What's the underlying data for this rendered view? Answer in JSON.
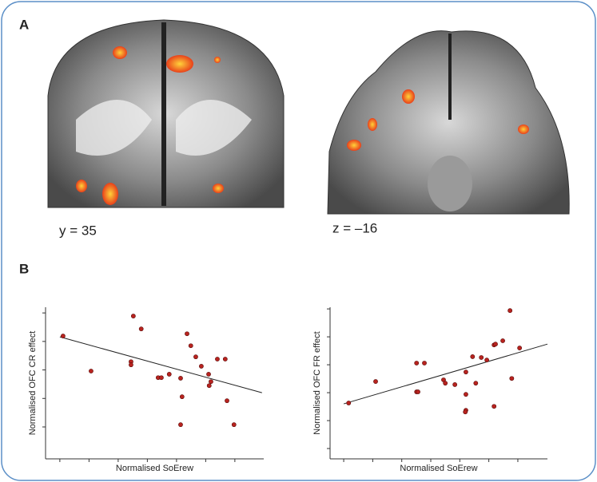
{
  "panel_labels": [
    "A",
    "B"
  ],
  "slice_labels": [
    "y = 35",
    "z = –16"
  ],
  "chart_data": [
    {
      "type": "scatter",
      "x_label": "Normalised SoErew",
      "y_label": "Normalised OFC CR effect",
      "color": "#b8231f",
      "x": [
        0.11,
        1.07,
        2.44,
        2.44,
        2.52,
        2.79,
        3.37,
        3.48,
        3.75,
        4.14,
        4.19,
        4.14,
        4.36,
        4.49,
        4.66,
        4.85,
        5.1,
        5.12,
        5.18,
        5.4,
        5.67,
        5.73,
        5.97
      ],
      "values": [
        3.19,
        1.96,
        2.29,
        2.18,
        3.89,
        3.44,
        1.73,
        1.73,
        1.85,
        1.71,
        1.06,
        0.08,
        3.27,
        2.85,
        2.46,
        2.13,
        1.85,
        1.45,
        1.59,
        2.38,
        2.38,
        0.92,
        0.08
      ],
      "trendline": {
        "x": [
          0,
          6.93
        ],
        "y": [
          3.16,
          1.2
        ]
      },
      "xlim": [
        -0.49,
        6.99
      ],
      "ylim": [
        -1.12,
        4.2
      ],
      "xticks": [
        0,
        1,
        2,
        3,
        4,
        5,
        6
      ],
      "yticks": [
        0,
        1,
        2,
        3,
        4
      ]
    },
    {
      "type": "scatter",
      "x_label": "Normalised SoErew",
      "y_label": "Normalised OFC FR effect",
      "color": "#b8231f",
      "x": [
        0.17,
        1.1,
        2.51,
        2.78,
        2.51,
        2.56,
        3.44,
        3.5,
        3.83,
        4.21,
        4.21,
        4.21,
        4.19,
        4.44,
        4.55,
        4.74,
        4.93,
        5.18,
        5.23,
        5.18,
        5.48,
        5.73,
        5.79,
        6.06
      ],
      "values": [
        1.63,
        2.4,
        3.06,
        3.06,
        2.03,
        2.03,
        2.46,
        2.34,
        2.29,
        1.94,
        2.74,
        1.37,
        1.31,
        3.29,
        2.34,
        3.26,
        3.17,
        3.71,
        3.74,
        1.51,
        3.86,
        4.94,
        2.51,
        3.6
      ],
      "trendline": {
        "x": [
          0,
          7.02
        ],
        "y": [
          1.6,
          3.74
        ]
      },
      "xlim": [
        -0.47,
        7.02
      ],
      "ylim": [
        -0.37,
        5.06
      ],
      "xticks": [
        0,
        1,
        2,
        3,
        4,
        5,
        6
      ],
      "yticks": [
        0,
        1,
        2,
        3,
        4,
        5
      ]
    }
  ]
}
